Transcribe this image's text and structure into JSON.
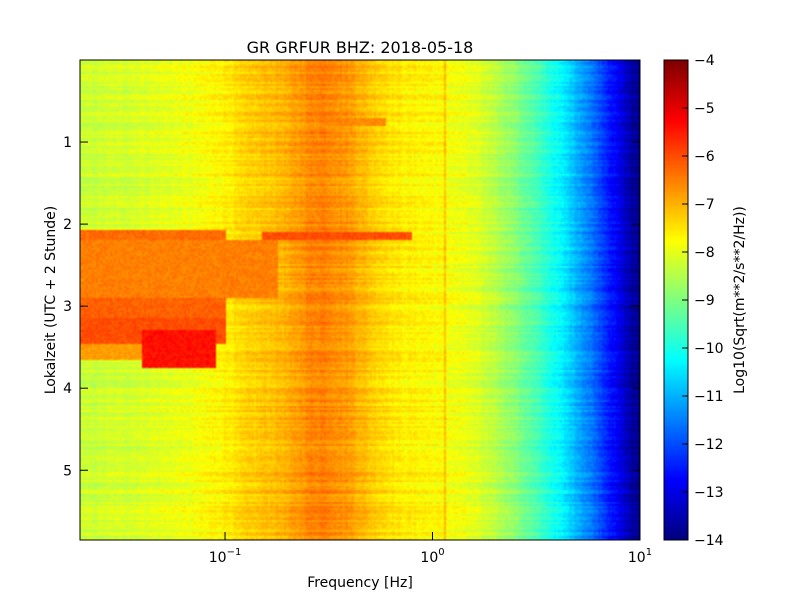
{
  "chart_data": {
    "type": "heatmap",
    "title": "GR GRFUR BHZ: 2018-05-18",
    "xlabel": "Frequency [Hz]",
    "ylabel": "Lokalzeit (UTC + 2 Stunde)",
    "x_scale": "log",
    "xlim": [
      0.02,
      10
    ],
    "ylim": [
      5.85,
      0
    ],
    "x_ticks": [
      {
        "value": 0.1,
        "base": "10",
        "exp": "−1"
      },
      {
        "value": 1,
        "base": "10",
        "exp": "0"
      },
      {
        "value": 10,
        "base": "10",
        "exp": "1"
      }
    ],
    "y_ticks": [
      {
        "value": 1,
        "label": "1"
      },
      {
        "value": 2,
        "label": "2"
      },
      {
        "value": 3,
        "label": "3"
      },
      {
        "value": 4,
        "label": "4"
      },
      {
        "value": 5,
        "label": "5"
      }
    ],
    "colorbar": {
      "label": "Log10(Sqrt(m**2/s**2/Hz))",
      "min": -14,
      "max": -4,
      "colormap": "jet",
      "ticks": [
        "−4",
        "−5",
        "−6",
        "−7",
        "−8",
        "−9",
        "−10",
        "−11",
        "−12",
        "−13",
        "−14"
      ]
    },
    "grid": false,
    "spectrum_profile": {
      "frequency": [
        0.02,
        0.04,
        0.07,
        0.1,
        0.15,
        0.2,
        0.25,
        0.3,
        0.4,
        0.5,
        0.7,
        1,
        1.5,
        2,
        2.5,
        3,
        4,
        5,
        6,
        7,
        8,
        9,
        10
      ],
      "level": [
        -8.3,
        -8.1,
        -7.9,
        -7.6,
        -7.2,
        -7.0,
        -6.6,
        -6.5,
        -6.8,
        -7.2,
        -7.6,
        -7.7,
        -8.0,
        -8.4,
        -8.9,
        -9.4,
        -10.2,
        -11.0,
        -11.7,
        -12.4,
        -13.0,
        -13.6,
        -14.0
      ]
    },
    "events": [
      {
        "time": [
          2.08,
          2.2
        ],
        "freq": [
          0.02,
          0.1
        ],
        "level": -6.3
      },
      {
        "time": [
          2.2,
          2.9
        ],
        "freq": [
          0.02,
          0.18
        ],
        "level": -6.5
      },
      {
        "time": [
          2.9,
          3.15
        ],
        "freq": [
          0.02,
          0.1
        ],
        "level": -6.2
      },
      {
        "time": [
          3.15,
          3.45
        ],
        "freq": [
          0.02,
          0.1
        ],
        "level": -6.0
      },
      {
        "time": [
          3.3,
          3.75
        ],
        "freq": [
          0.04,
          0.09
        ],
        "level": -5.4
      },
      {
        "time": [
          3.45,
          3.65
        ],
        "freq": [
          0.02,
          0.04
        ],
        "level": -6.8
      },
      {
        "time": [
          2.1,
          2.2
        ],
        "freq": [
          0.15,
          0.8
        ],
        "level": -6.0
      },
      {
        "time": [
          0.7,
          0.8
        ],
        "freq": [
          0.3,
          0.6
        ],
        "level": -6.6
      }
    ],
    "lines": [
      {
        "freq": 1.15,
        "level_offset": 0.7
      }
    ]
  }
}
